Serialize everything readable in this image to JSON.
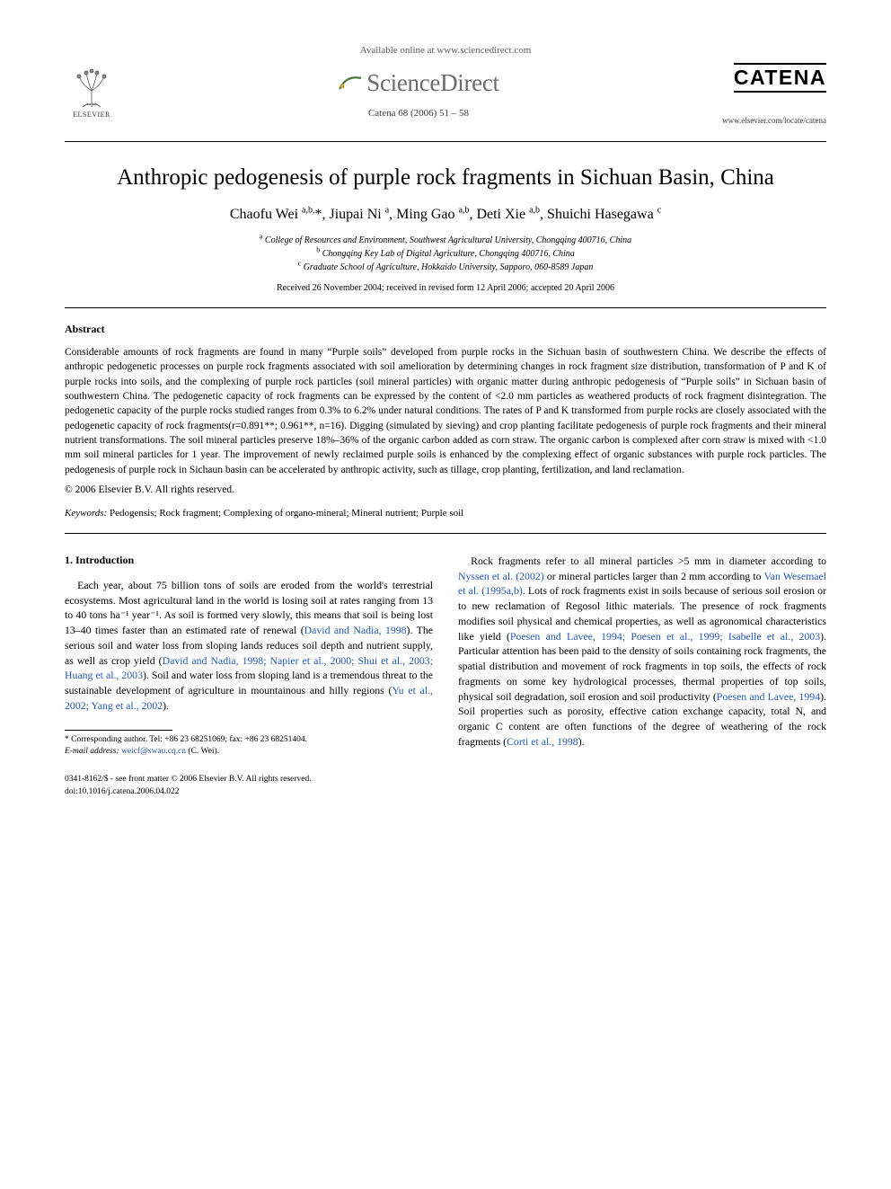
{
  "header": {
    "available_text": "Available online at www.sciencedirect.com",
    "sd_brand": "ScienceDirect",
    "citation": "Catena 68 (2006) 51 – 58",
    "journal_brand": "CATENA",
    "journal_url": "www.elsevier.com/locate/catena",
    "elsevier_label": "ELSEVIER"
  },
  "title": "Anthropic pedogenesis of purple rock fragments in Sichuan Basin, China",
  "authors_html": "Chaofu Wei <sup>a,b,</sup>*, Jiupai Ni <sup>a</sup>, Ming Gao <sup>a,b</sup>, Deti Xie <sup>a,b</sup>, Shuichi Hasegawa <sup>c</sup>",
  "affiliations": {
    "a": "College of Resources and Environment, Southwest Agricultural University, Chongqing 400716, China",
    "b": "Chongqing Key Lab of Digital Agriculture, Chongqing 400716, China",
    "c": "Graduate School of Agriculture, Hokkaido University, Sapporo, 060-8589 Japan"
  },
  "dates": "Received 26 November 2004; received in revised form 12 April 2006; accepted 20 April 2006",
  "abstract": {
    "heading": "Abstract",
    "body": "Considerable amounts of rock fragments are found in many “Purple soils” developed from purple rocks in the Sichuan basin of southwestern China. We describe the effects of anthropic pedogenetic processes on purple rock fragments associated with soil amelioration by determining changes in rock fragment size distribution, transformation of P and K of purple rocks into soils, and the complexing of purple rock particles (soil mineral particles) with organic matter during anthropic pedogenesis of “Purple soils” in Sichuan basin of southwestern China. The pedogenetic capacity of rock fragments can be expressed by the content of <2.0 mm particles as weathered products of rock fragment disintegration. The pedogenetic capacity of the purple rocks studied ranges from 0.3% to 6.2% under natural conditions. The rates of P and K transformed from purple rocks are closely associated with the pedogenetic capacity of rock fragments(r=0.891**; 0.961**, n=16). Digging (simulated by sieving) and crop planting facilitate pedogenesis of purple rock fragments and their mineral nutrient transformations. The soil mineral particles preserve 18%–36% of the organic carbon added as corn straw. The organic carbon is complexed after corn straw is mixed with <1.0 mm soil mineral particles for 1 year. The improvement of newly reclaimed purple soils is enhanced by the complexing effect of organic substances with purple rock particles. The pedogenesis of purple rock in Sichaun basin can be accelerated by anthropic activity, such as tillage, crop planting, fertilization, and land reclamation.",
    "copyright": "© 2006 Elsevier B.V. All rights reserved."
  },
  "keywords": {
    "label": "Keywords:",
    "list": "Pedogensis; Rock fragment; Complexing of organo-mineral; Mineral nutrient; Purple soil"
  },
  "intro": {
    "heading": "1. Introduction",
    "left": {
      "p1_a": "Each year, about 75 billion tons of soils are eroded from the world's terrestrial ecosystems. Most agricultural land in the world is losing soil at rates ranging from 13 to 40 tons ha⁻¹ year⁻¹. As soil is formed very slowly, this means that soil is being lost 13–40 times faster than an estimated rate of renewal (",
      "c1": "David and Nadia, 1998",
      "p1_b": "). The serious soil and water loss from sloping lands reduces soil depth and nutrient supply, as well as crop yield (",
      "c2": "David and Nadia, 1998; Napier et al., 2000; Shui et al., 2003; Huang et al., 2003",
      "p1_c": "). Soil and water loss from sloping land is a tremendous threat to the sustainable development of agriculture in mountainous and hilly regions (",
      "c3": "Yu et al., 2002; Yang et al., 2002",
      "p1_d": ")."
    },
    "right": {
      "p1_a": "Rock fragments refer to all mineral particles >5 mm in diameter according to ",
      "c1": "Nyssen et al. (2002)",
      "p1_b": " or mineral particles larger than 2 mm according to ",
      "c2": "Van Wesemael et al. (1995a,b)",
      "p1_c": ". Lots of rock fragments exist in soils because of serious soil erosion or to new reclamation of Regosol lithic materials. The presence of rock fragments modifies soil physical and chemical properties, as well as agronomical characteristics like yield (",
      "c3": "Poesen and Lavee, 1994; Poesen et al., 1999; Isabelle et al., 2003",
      "p1_d": "). Particular attention has been paid to the density of soils containing rock fragments, the spatial distribution and movement of rock fragments in top soils, the effects of rock fragments on some key hydrological processes, thermal properties of top soils, physical soil degradation, soil erosion and soil productivity (",
      "c4": "Poesen and Lavee, 1994",
      "p1_e": "). Soil properties such as porosity, effective cation exchange capacity, total N, and organic C content are often functions of the degree of weathering of the rock fragments (",
      "c5": "Corti et al., 1998",
      "p1_f": ")."
    }
  },
  "footnote": {
    "corr": "* Corresponding author. Tel: +86 23 68251069; fax: +86 23 68251404.",
    "email_label": "E-mail address:",
    "email": "weicf@swau.cq.cn",
    "email_suffix": "(C. Wei)."
  },
  "footer": {
    "line1": "0341-8162/$ - see front matter © 2006 Elsevier B.V. All rights reserved.",
    "line2": "doi:10.1016/j.catena.2006.04.022"
  },
  "colors": {
    "citation_link": "#2557b0",
    "text": "#000000",
    "muted": "#5a5a5a",
    "sd_gray": "#6b6b6b"
  },
  "typography": {
    "title_pt": 25,
    "authors_pt": 16,
    "body_pt": 11.8,
    "abstract_pt": 11.5,
    "small_pt": 10,
    "footnote_pt": 9.5
  }
}
